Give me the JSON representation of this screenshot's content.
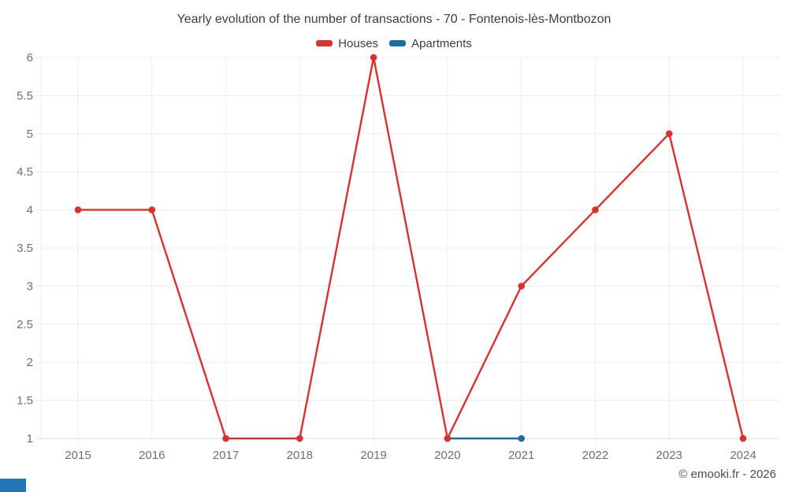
{
  "header": {
    "title": "Yearly evolution of the number of transactions - 70 - Fontenois-lès-Montbozon"
  },
  "legend": {
    "items": [
      {
        "label": "Houses",
        "color": "#d93030"
      },
      {
        "label": "Apartments",
        "color": "#1a6ca3"
      }
    ]
  },
  "watermark": "© emooki.fr - 2026",
  "brand": {
    "corner_color": "#2177b4"
  },
  "chart_data": {
    "type": "line",
    "title": "Yearly evolution of the number of transactions - 70 - Fontenois-lès-Montbozon",
    "categories": [
      2015,
      2016,
      2017,
      2018,
      2019,
      2020,
      2021,
      2022,
      2023,
      2024
    ],
    "series": [
      {
        "name": "Houses",
        "color": "#d93030",
        "x": [
          2015,
          2016,
          2017,
          2018,
          2019,
          2020,
          2021,
          2022,
          2023,
          2024
        ],
        "values": [
          4,
          4,
          1,
          1,
          6,
          1,
          3,
          4,
          5,
          1
        ]
      },
      {
        "name": "Apartments",
        "color": "#1a6ca3",
        "x": [
          2020,
          2021
        ],
        "values": [
          1,
          1
        ]
      }
    ],
    "xlabel": "",
    "ylabel": "",
    "ylim": [
      1,
      6
    ],
    "ytick_step": 0.5,
    "grid": true,
    "legend_position": "top",
    "colors": {
      "grid": "#ededed",
      "axis": "#dcdcdc",
      "tick_label": "#6e6e6e",
      "title": "#3d3d3d",
      "watermark": "#4d4d4d"
    }
  }
}
